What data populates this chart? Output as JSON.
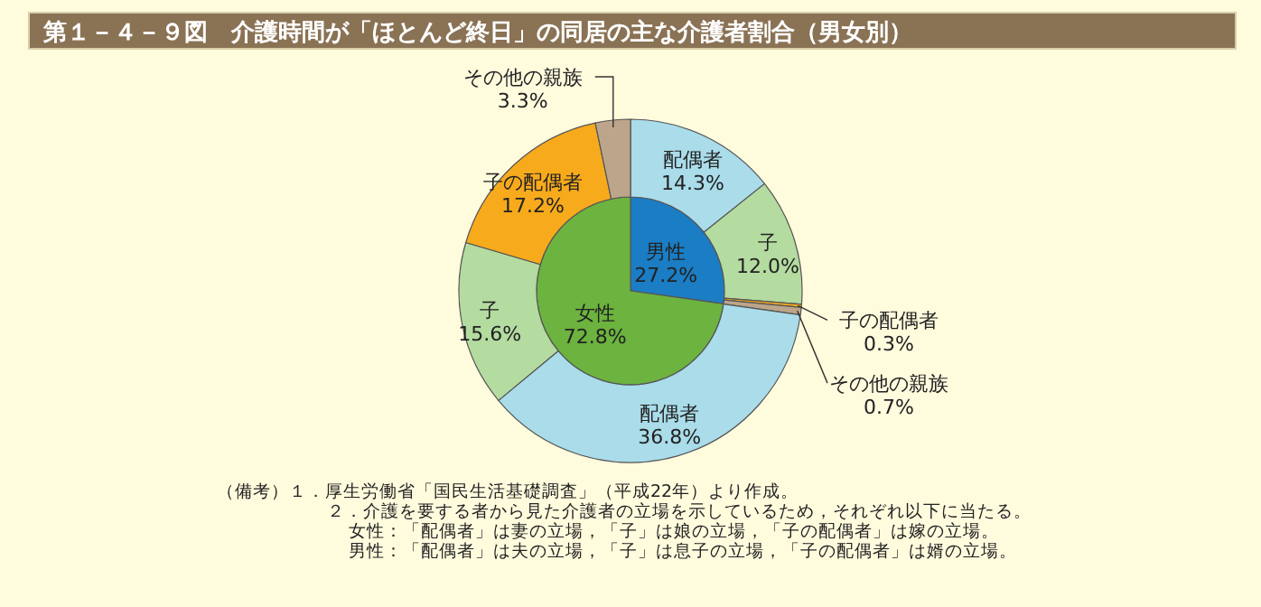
{
  "chart_data": [
    {
      "type": "pie",
      "title": "第１－４－９図　介護時間が「ほとんど終日」の同居の主な介護者割合（男女別）",
      "categories": [
        "男性",
        "女性"
      ],
      "values": [
        27.2,
        72.8
      ],
      "value_labels": [
        "27.2%",
        "72.8%"
      ],
      "colors": [
        "#1b7dc3",
        "#6cb33f"
      ],
      "data_labels": true
    },
    {
      "type": "donut",
      "categories": [
        "配偶者",
        "子",
        "子の配偶者",
        "その他の親族",
        "配偶者",
        "子",
        "子の配偶者",
        "その他の親族"
      ],
      "values": [
        14.3,
        12.0,
        0.3,
        0.7,
        36.8,
        15.6,
        17.2,
        3.3
      ],
      "value_labels": [
        "14.3%",
        "12.0%",
        "0.3%",
        "0.7%",
        "36.8%",
        "15.6%",
        "17.2%",
        "3.3%"
      ],
      "colors": [
        "#aadcea",
        "#b4dba0",
        "#f7aa1c",
        "#bca58a",
        "#aadcea",
        "#b4dba0",
        "#f7aa1c",
        "#bca58a"
      ],
      "data_labels": true,
      "annotations": [
        "（備考）１．厚生労働省「国民生活基礎調査」（平成22年）より作成。",
        "２．介護を要する者から見た介護者の立場を示しているため，それぞれ以下に当たる。",
        "女性：「配偶者」は妻の立場，「子」は娘の立場，「子の配偶者」は嫁の立場。",
        "男性：「配偶者」は夫の立場，「子」は息子の立場，「子の配偶者」は婿の立場。"
      ]
    }
  ]
}
